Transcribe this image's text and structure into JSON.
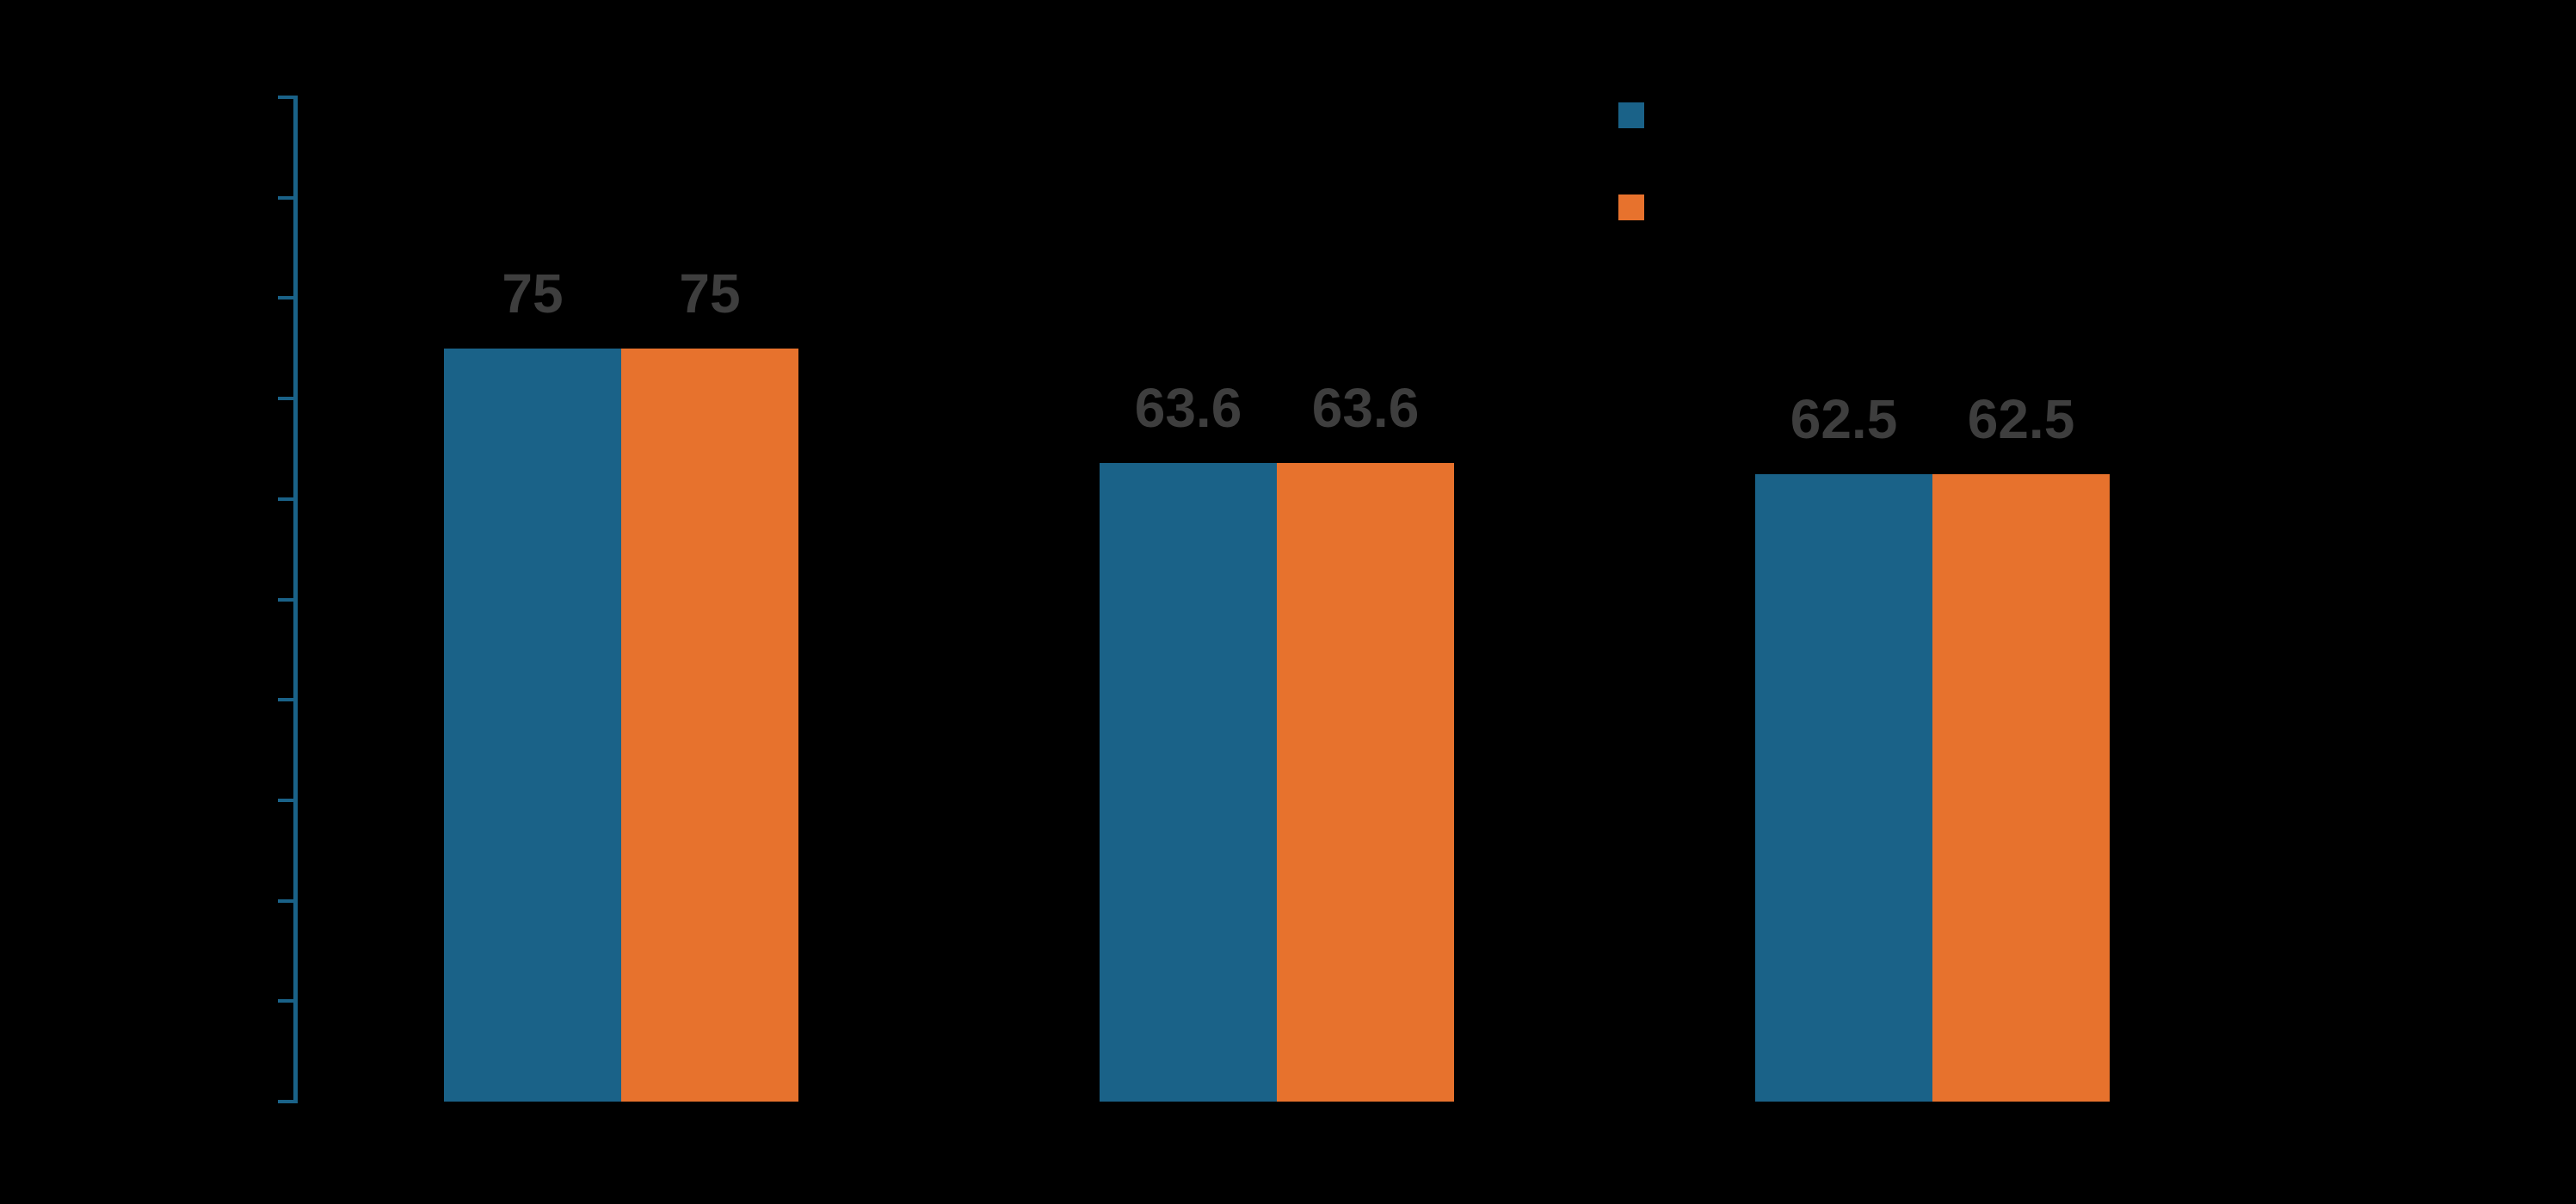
{
  "chart_data": {
    "type": "bar",
    "background_color": "#000000",
    "grouped": true,
    "group_count": 3,
    "categories_visible": false,
    "series": [
      {
        "key": "blue",
        "color": "#1A6288",
        "values": [
          75,
          63.6,
          62.5
        ],
        "value_labels": [
          "75",
          "63.6",
          "62.5"
        ]
      },
      {
        "key": "orange",
        "color": "#E7722D",
        "values": [
          75,
          63.6,
          62.5
        ],
        "value_labels": [
          "75",
          "63.6",
          "62.5"
        ]
      }
    ],
    "value_label_color": "#3E3E3E",
    "y_axis": {
      "axis_color": "#1A6288",
      "min": 0,
      "max": 100,
      "tick_step": 10,
      "ticks": [
        0,
        10,
        20,
        30,
        40,
        50,
        60,
        70,
        80,
        90,
        100
      ],
      "tick_labels_visible": false,
      "grid": false
    },
    "legend": {
      "position": "top-right",
      "labels_visible": false,
      "entries": [
        {
          "key": "blue",
          "swatch_color": "#1A6288"
        },
        {
          "key": "orange",
          "swatch_color": "#E7722D"
        }
      ]
    }
  }
}
